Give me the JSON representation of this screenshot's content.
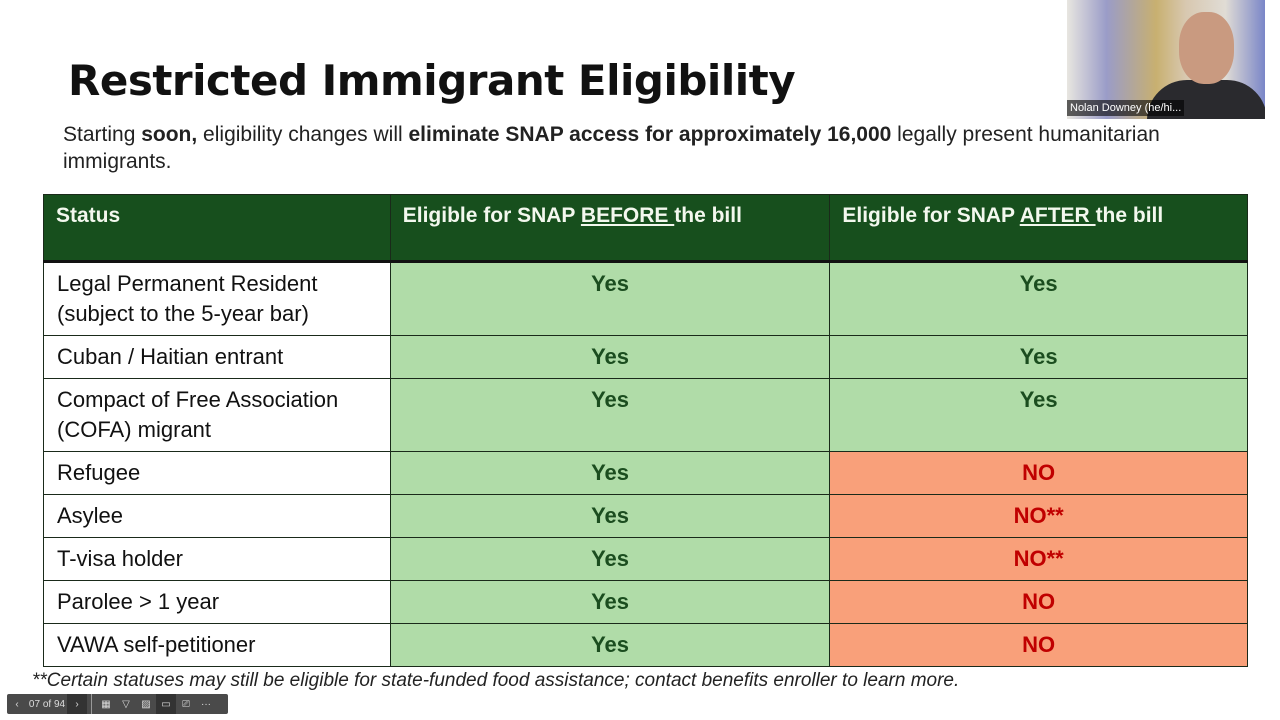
{
  "slide": {
    "title": "Restricted Immigrant Eligibility",
    "subtitle": {
      "p1": "Starting ",
      "b1": "soon,",
      "p2": " eligibility changes will ",
      "b2": "eliminate SNAP access for approximately 16,000",
      "p3": " legally present humanitarian immigrants."
    },
    "table": {
      "headers": {
        "status": "Status",
        "before_pre": "Eligible for SNAP ",
        "before_u": "BEFORE ",
        "before_post": "the bill",
        "after_pre": "Eligible for SNAP ",
        "after_u": "AFTER ",
        "after_post": "the bill"
      },
      "rows": [
        {
          "status": "Legal Permanent Resident (subject to the 5-year bar)",
          "before": "Yes",
          "after": "Yes"
        },
        {
          "status": "Cuban / Haitian entrant",
          "before": "Yes",
          "after": "Yes"
        },
        {
          "status": "Compact of Free Association (COFA) migrant",
          "before": "Yes",
          "after": "Yes"
        },
        {
          "status": "Refugee",
          "before": "Yes",
          "after": "NO"
        },
        {
          "status": "Asylee",
          "before": "Yes",
          "after": "NO**"
        },
        {
          "status": "T-visa holder",
          "before": "Yes",
          "after": "NO**"
        },
        {
          "status": "Parolee > 1 year",
          "before": "Yes",
          "after": "NO"
        },
        {
          "status": "VAWA self-petitioner",
          "before": "Yes",
          "after": "NO"
        }
      ]
    },
    "footnote": "**Certain statuses may still be eligible for state-funded food assistance; contact benefits enroller to learn more."
  },
  "colors": {
    "header": "#174f1d",
    "yes_bg": "#b0dca8",
    "no_bg": "#f9a07a",
    "no_text": "#c00000"
  },
  "video": {
    "participant_name": "Nolan Downey (he/hi..."
  },
  "toolbar": {
    "page_indicator": "07 of 94",
    "icons": [
      "chevron-left-icon",
      "chevron-right-icon",
      "grid-icon",
      "pen-icon",
      "subtitles-off-icon",
      "camera-icon",
      "presenter-icon",
      "more-icon"
    ],
    "prev": "‹",
    "next": "›",
    "grid": "▦",
    "pen": "▽",
    "subs": "▨",
    "camera": "▭",
    "presenter": "⎚",
    "more": "···"
  }
}
